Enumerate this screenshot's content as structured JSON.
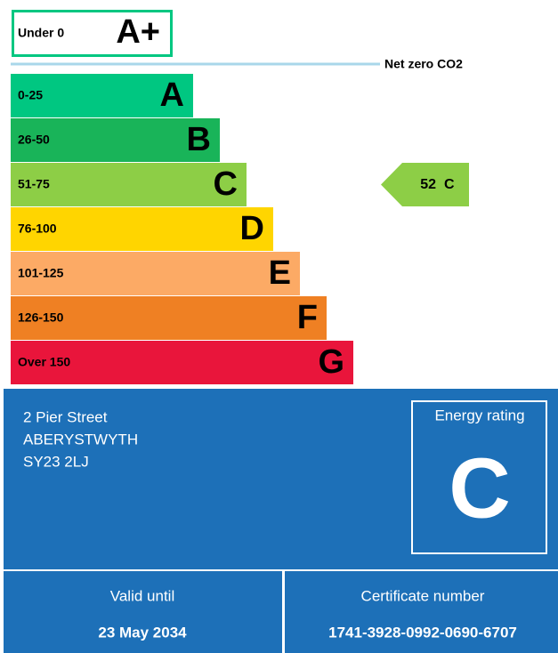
{
  "top_band": {
    "range": "Under 0",
    "letter": "A+",
    "color": "#00c781"
  },
  "net_zero": {
    "label": "Net zero CO2",
    "color": "#a9d7ea"
  },
  "bands": [
    {
      "range": "0-25",
      "letter": "A",
      "color": "#00c781"
    },
    {
      "range": "26-50",
      "letter": "B",
      "color": "#19b459"
    },
    {
      "range": "51-75",
      "letter": "C",
      "color": "#8dce46"
    },
    {
      "range": "76-100",
      "letter": "D",
      "color": "#ffd500"
    },
    {
      "range": "101-125",
      "letter": "E",
      "color": "#fcaa65"
    },
    {
      "range": "126-150",
      "letter": "F",
      "color": "#ef8023"
    },
    {
      "range": "Over 150",
      "letter": "G",
      "color": "#e9153b"
    }
  ],
  "current": {
    "score": 52,
    "letter": "C",
    "color": "#8dce46"
  },
  "property": {
    "address": [
      "2 Pier Street",
      "ABERYSTWYTH",
      "SY23 2LJ"
    ],
    "rating_label": "Energy rating",
    "rating": "C",
    "color": "#1d70b8"
  },
  "footer": {
    "valid_label": "Valid until",
    "valid_date": "23 May 2034",
    "certificate_label": "Certificate number",
    "certificate_number": "1741-3928-0992-0690-6707"
  }
}
